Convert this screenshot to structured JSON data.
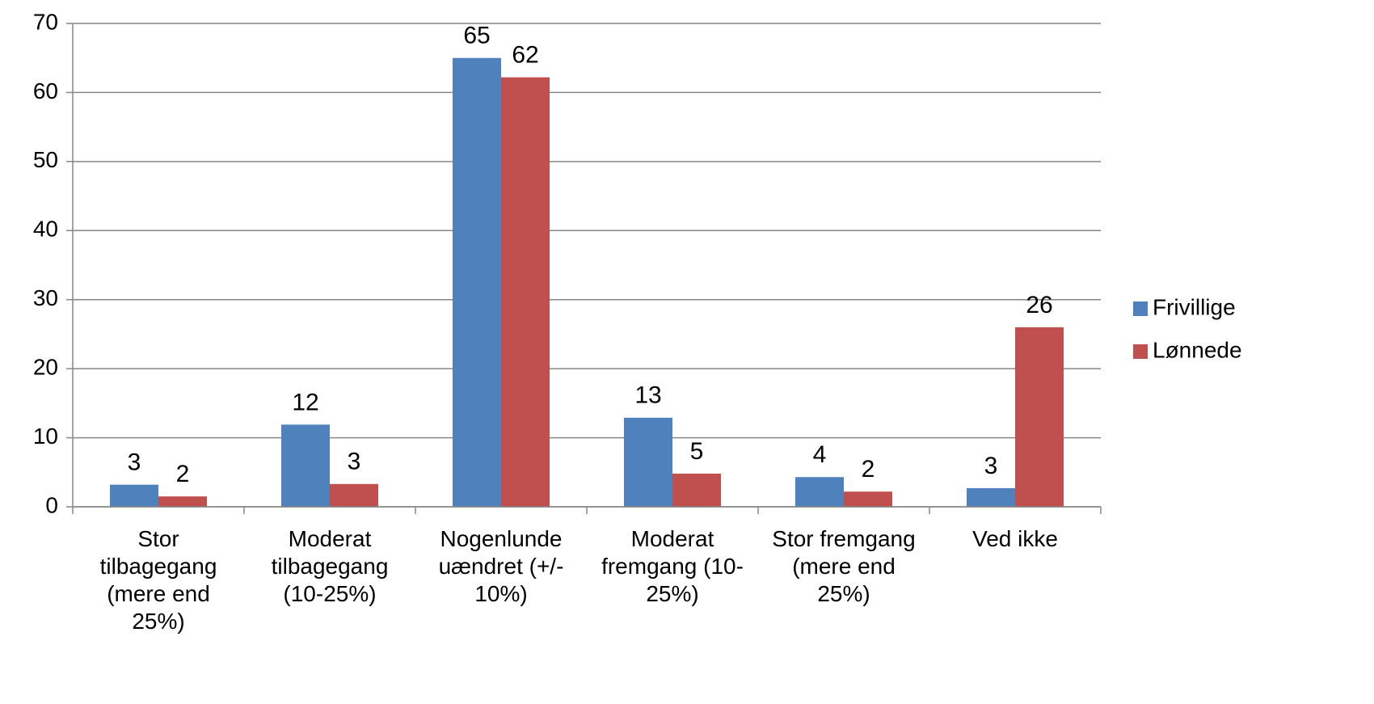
{
  "chart_data": {
    "type": "bar",
    "categories": [
      "Stor tilbagegang (mere end 25%)",
      "Moderat tilbagegang (10-25%)",
      "Nogenlunde uændret (+/- 10%)",
      "Moderat fremgang (10-25%)",
      "Stor fremgang (mere end 25%)",
      "Ved ikke"
    ],
    "series": [
      {
        "name": "Frivillige",
        "color": "#4f81bd",
        "values": [
          3.2,
          11.9,
          65,
          12.9,
          4.3,
          2.7
        ],
        "value_labels": [
          "3",
          "12",
          "65",
          "13",
          "4",
          "3"
        ]
      },
      {
        "name": "Lønnede",
        "color": "#c0504d",
        "values": [
          1.5,
          3.3,
          62.2,
          4.8,
          2.2,
          26
        ],
        "value_labels": [
          "2",
          "3",
          "62",
          "5",
          "2",
          "26"
        ]
      }
    ],
    "ylim": [
      0,
      70
    ],
    "yticks": [
      0,
      10,
      20,
      30,
      40,
      50,
      60,
      70
    ],
    "grid": true,
    "legend": "right"
  }
}
